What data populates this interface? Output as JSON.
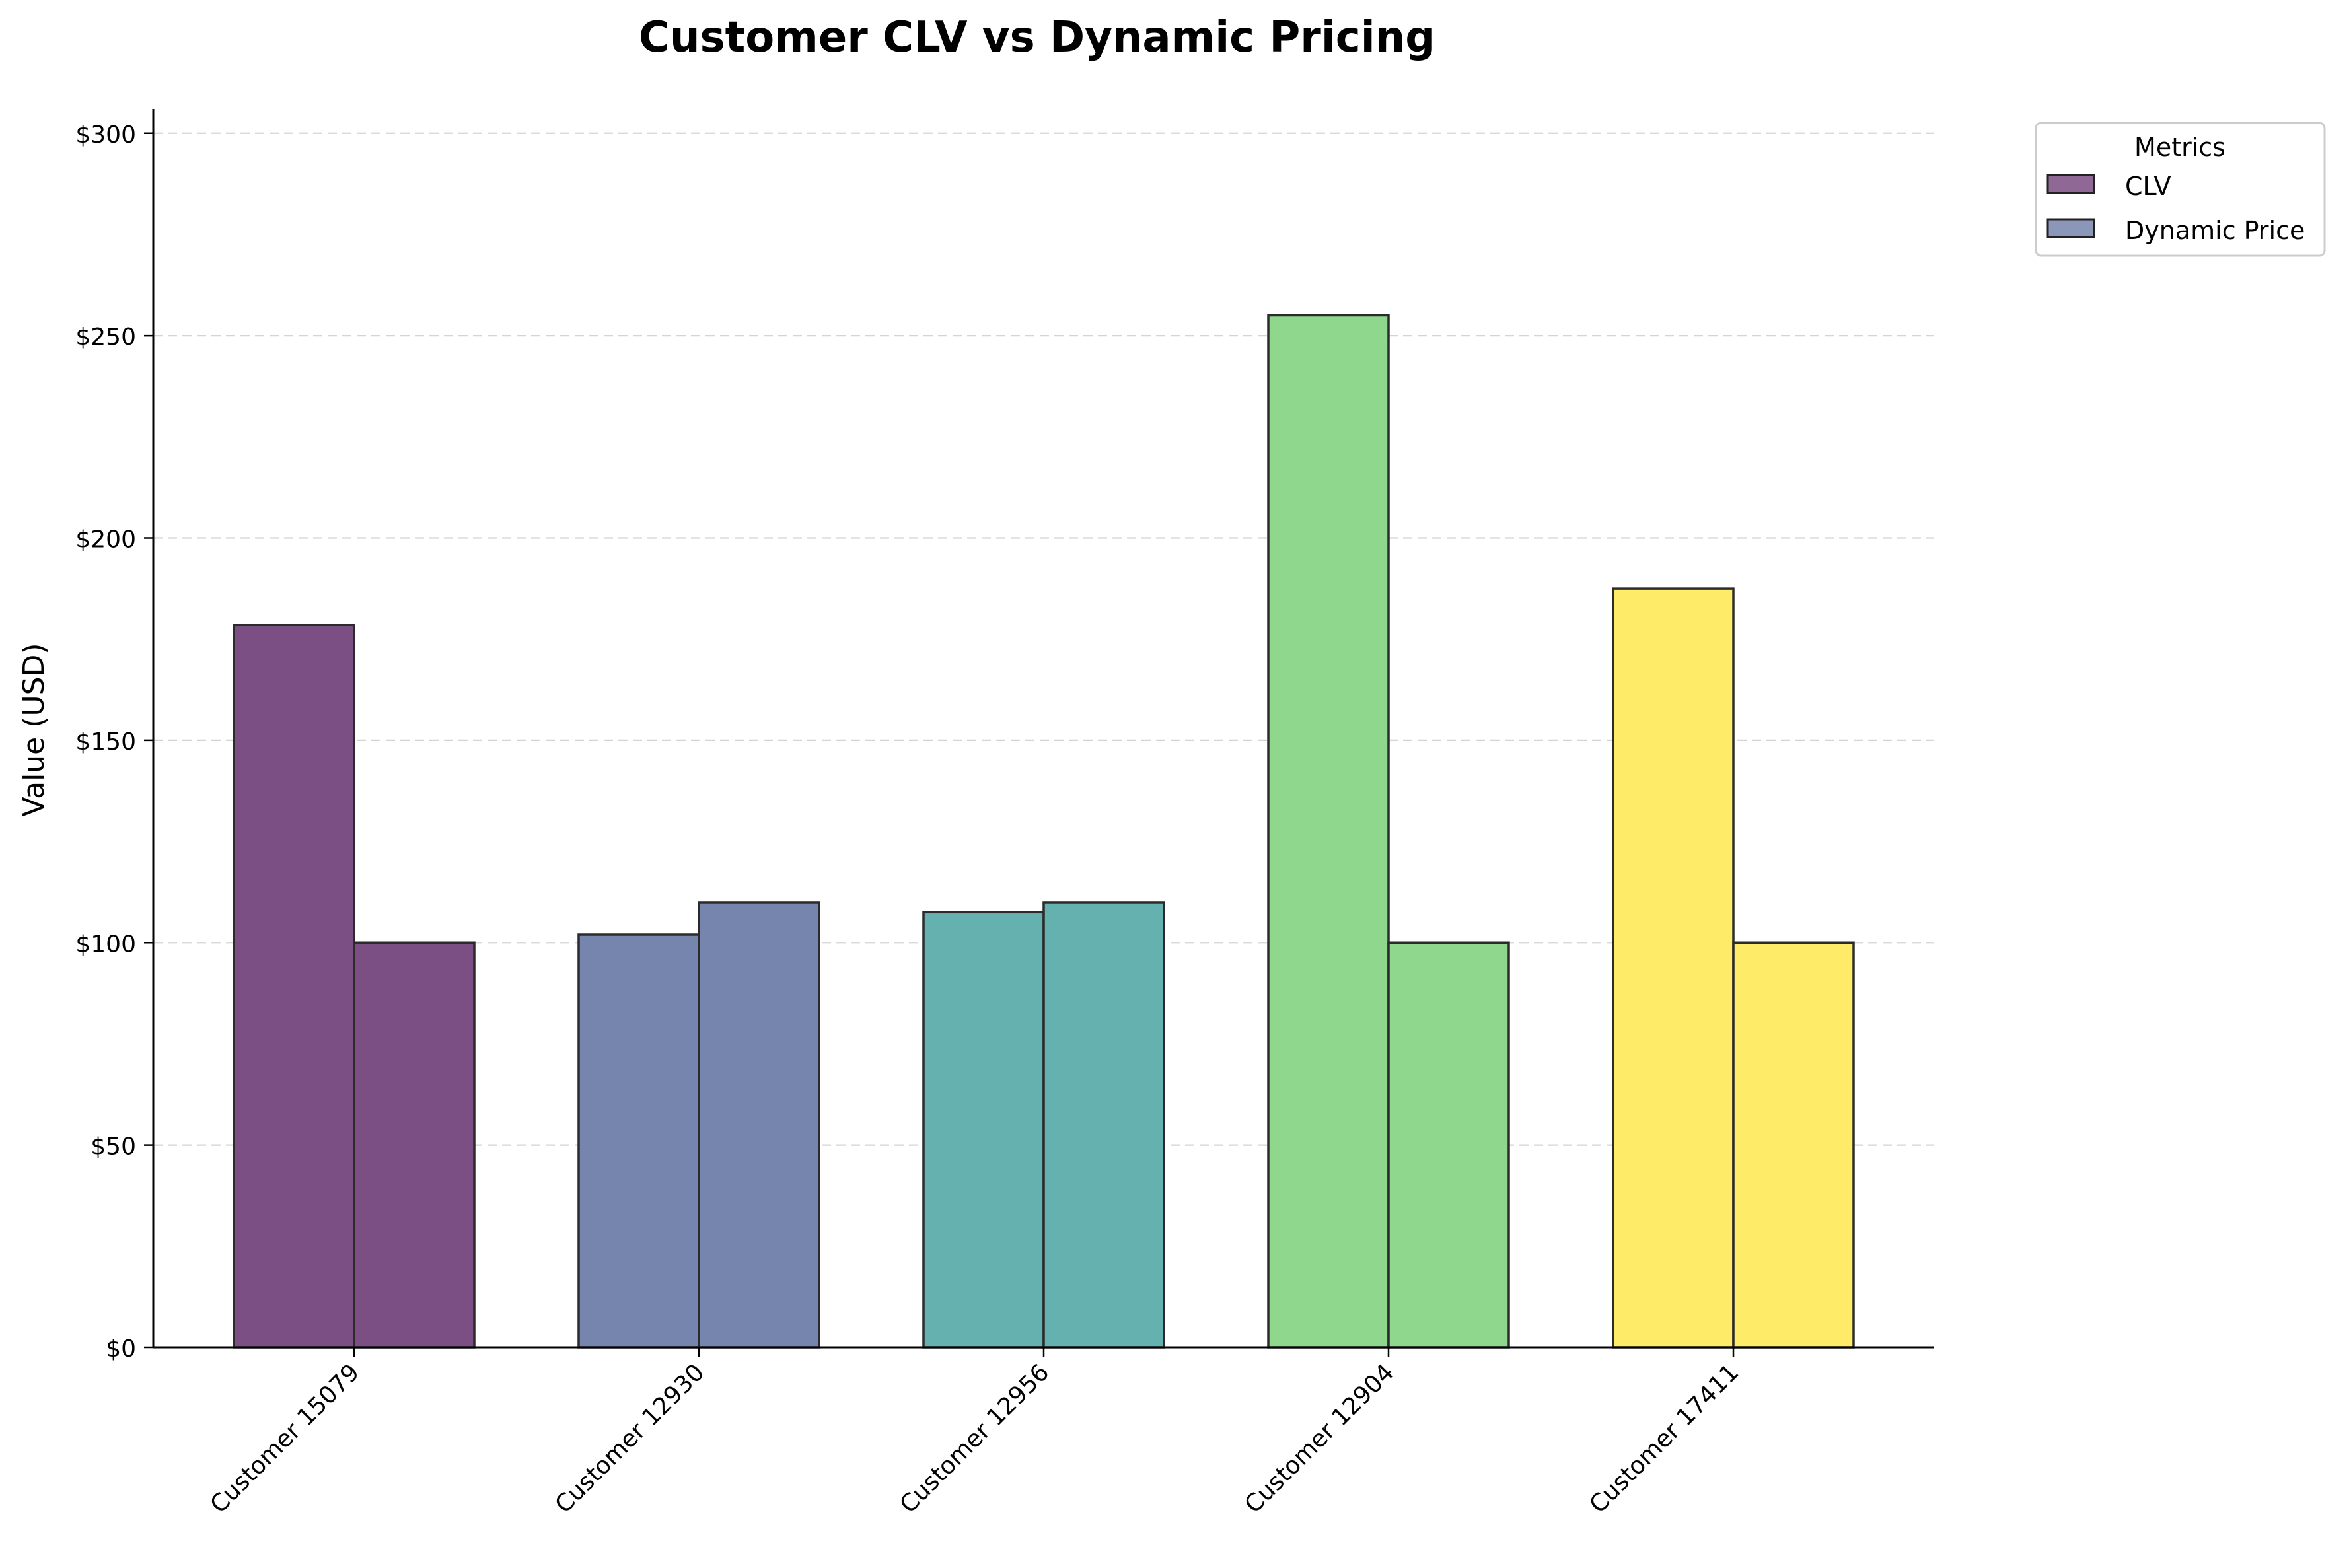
{
  "chart_data": {
    "type": "bar",
    "title": "Customer CLV vs Dynamic Pricing",
    "xlabel": "",
    "ylabel": "Value (USD)",
    "ylim": [
      0,
      306
    ],
    "yticks": [
      0,
      50,
      100,
      150,
      200,
      250,
      300
    ],
    "ytick_labels": [
      "$0",
      "$50",
      "$100",
      "$150",
      "$200",
      "$250",
      "$300"
    ],
    "grid": "horizontal dashed",
    "categories": [
      "Customer 15079",
      "Customer 12930",
      "Customer 12956",
      "Customer 12904",
      "Customer 17411"
    ],
    "category_colors": [
      "#7b4e84",
      "#7685ad",
      "#64b1af",
      "#90d78e",
      "#feeb67"
    ],
    "series": [
      {
        "name": "CLV",
        "values": [
          178.5,
          102,
          107.5,
          255,
          187.5
        ]
      },
      {
        "name": "Dynamic Price",
        "values": [
          100,
          110,
          110,
          100,
          100
        ]
      }
    ],
    "legend": {
      "title": "Metrics",
      "placement": "outside right top",
      "colors": [
        "#7b4e84",
        "#7685ad"
      ]
    }
  }
}
